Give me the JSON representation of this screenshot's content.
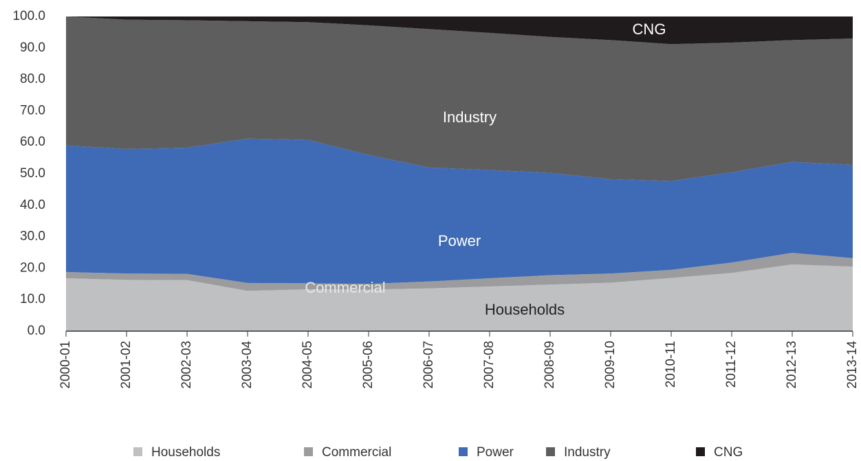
{
  "chart_data": {
    "type": "stacked_area",
    "categories": [
      "2000-01",
      "2001-02",
      "2002-03",
      "2003-04",
      "2004-05",
      "2005-06",
      "2006-07",
      "2007-08",
      "2008-09",
      "2009-10",
      "2010-11",
      "2011-12",
      "2012-13",
      "2013-14"
    ],
    "series": [
      {
        "name": "Households",
        "color": "#bfc0c2",
        "values": [
          16.8,
          16.3,
          16.2,
          12.8,
          13.3,
          13.2,
          13.6,
          14.2,
          14.8,
          15.4,
          16.9,
          18.5,
          21.2,
          20.5
        ]
      },
      {
        "name": "Commercial",
        "color": "#9c9c9e",
        "values": [
          2.0,
          2.0,
          2.0,
          2.5,
          1.9,
          1.8,
          2.2,
          2.6,
          3.0,
          2.9,
          2.6,
          3.3,
          3.7,
          2.7
        ]
      },
      {
        "name": "Power",
        "color": "#3f6ab5",
        "values": [
          40.2,
          39.6,
          40.1,
          45.9,
          45.6,
          41.0,
          36.2,
          34.4,
          32.5,
          30.0,
          28.2,
          28.7,
          28.9,
          29.6
        ]
      },
      {
        "name": "Industry",
        "color": "#5e5e5e",
        "values": [
          41.0,
          41.1,
          40.5,
          37.3,
          37.4,
          41.2,
          44.0,
          43.6,
          43.2,
          44.2,
          43.5,
          41.2,
          38.7,
          40.2
        ]
      },
      {
        "name": "CNG",
        "color": "#1f1b1c",
        "values": [
          0,
          1.0,
          1.2,
          1.5,
          1.8,
          2.8,
          4.0,
          5.2,
          6.5,
          7.5,
          8.8,
          8.3,
          7.5,
          7.0
        ]
      }
    ],
    "annotations": [
      "CNG",
      "Industry",
      "Power",
      "Commercial",
      "Households"
    ],
    "ylim": [
      0,
      100
    ],
    "yticks": [
      {
        "value": 0,
        "label": "0.0"
      },
      {
        "value": 10,
        "label": "10.0"
      },
      {
        "value": 20,
        "label": "20.0"
      },
      {
        "value": 30,
        "label": "30.0"
      },
      {
        "value": 40,
        "label": "40.0"
      },
      {
        "value": 50,
        "label": "50.0"
      },
      {
        "value": 60,
        "label": "60.0"
      },
      {
        "value": 70,
        "label": "70.0"
      },
      {
        "value": 80,
        "label": "80.0"
      },
      {
        "value": 90,
        "label": "90.0"
      },
      {
        "value": 100,
        "label": "100.0"
      }
    ],
    "legend": "bottom"
  }
}
